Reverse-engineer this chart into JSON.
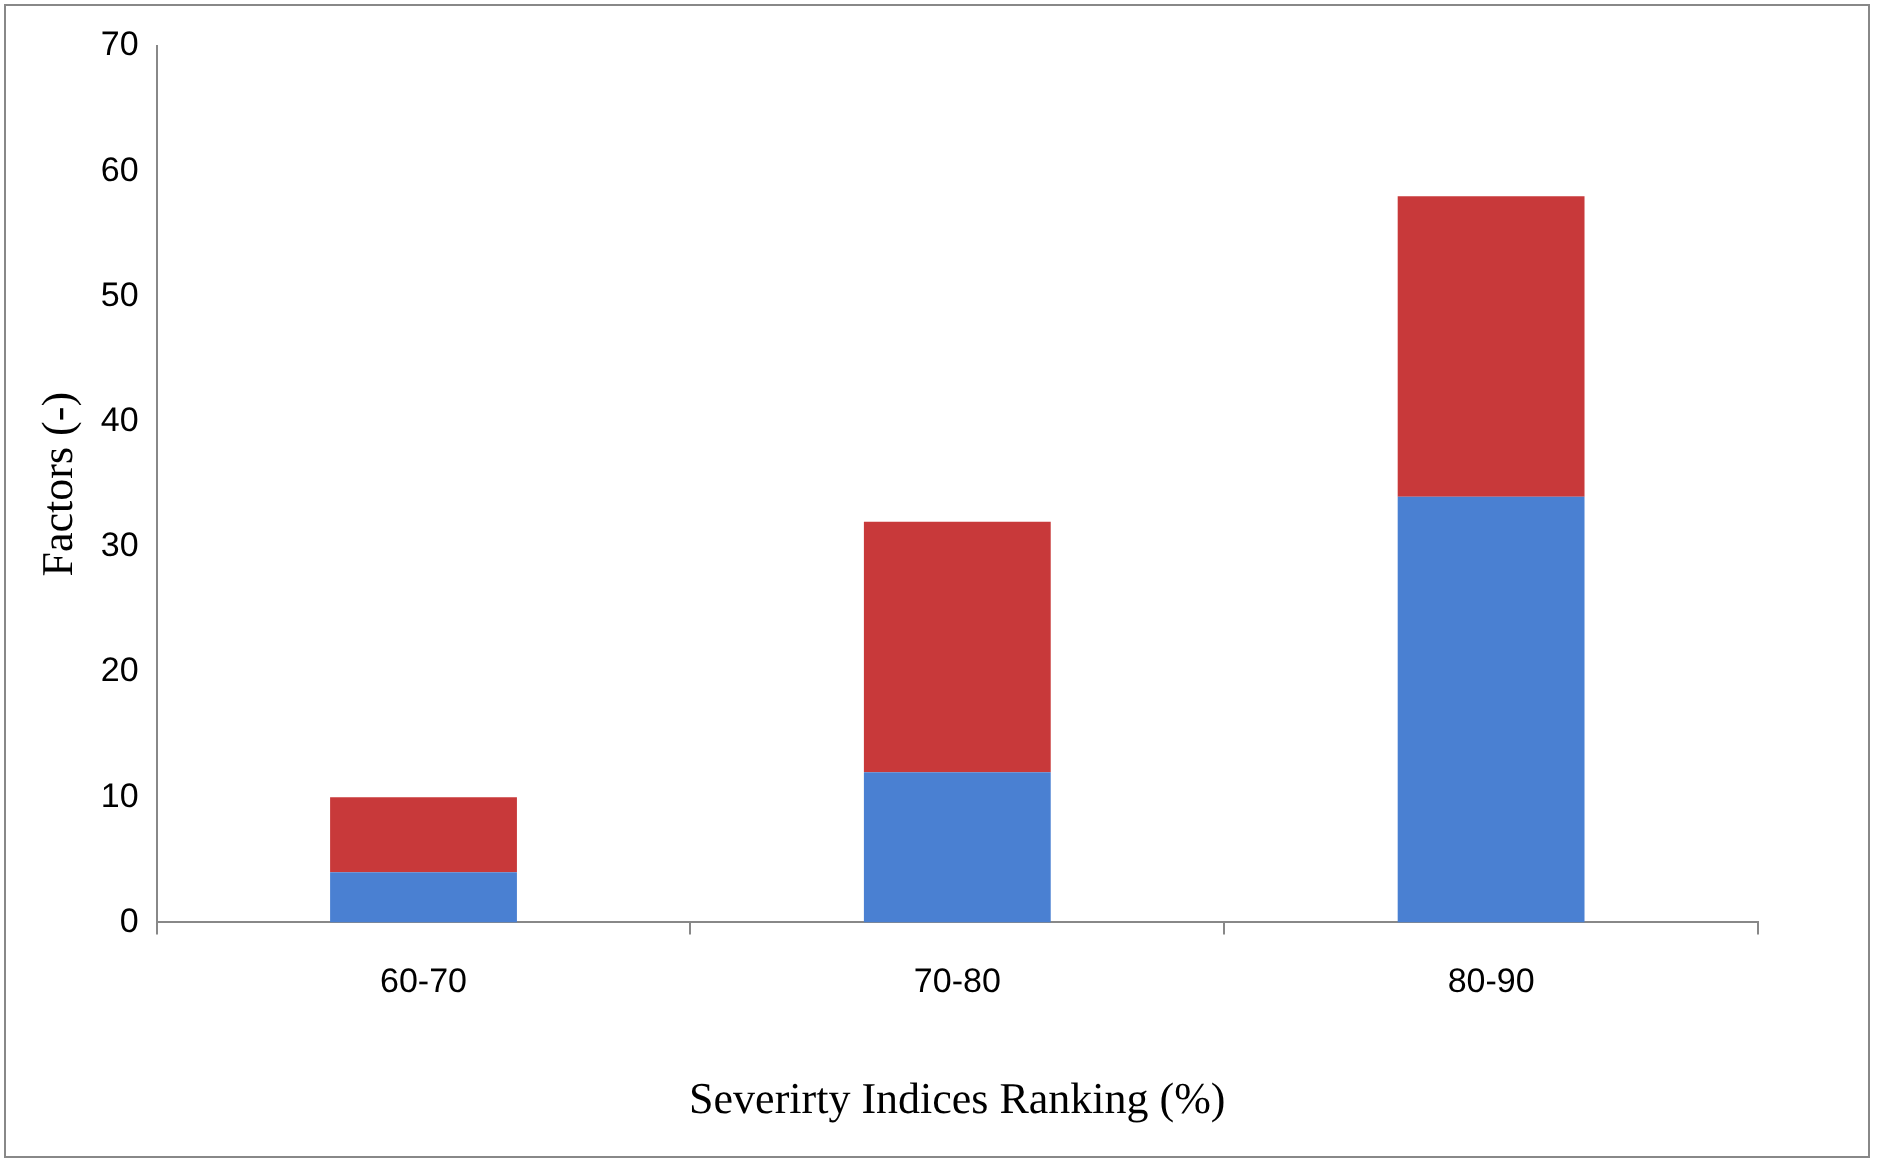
{
  "chart_data": {
    "type": "bar",
    "xlabel": "Severirty Indices Ranking (%)",
    "ylabel": "Factors (-)",
    "categories": [
      "60-70",
      "70-80",
      "80-90"
    ],
    "series": [
      {
        "color": "#4a80d2",
        "values": [
          4,
          12,
          34
        ]
      },
      {
        "color": "#c8393a",
        "values": [
          6,
          20,
          24
        ]
      }
    ],
    "stacked": true,
    "ylim": [
      0,
      70
    ],
    "yticks": [
      0,
      10,
      20,
      30,
      40,
      50,
      60,
      70
    ],
    "grid": false,
    "legend": false
  }
}
